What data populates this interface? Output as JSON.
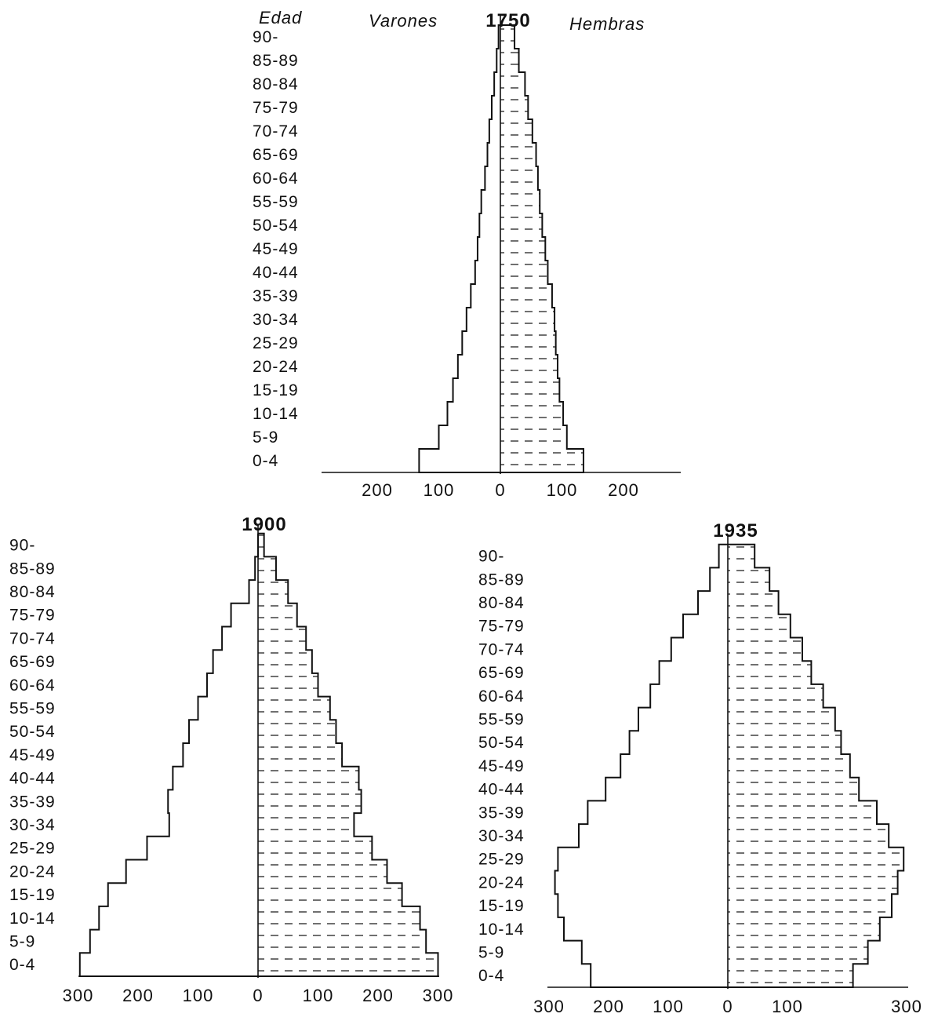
{
  "chart_data": [
    {
      "type": "bar",
      "title": "1750",
      "header_labels": {
        "age": "Edad",
        "male": "Varones",
        "female": "Hembras"
      },
      "categories": [
        "0-4",
        "5-9",
        "10-14",
        "15-19",
        "20-24",
        "25-29",
        "30-34",
        "35-39",
        "40-44",
        "45-49",
        "50-54",
        "55-59",
        "60-64",
        "65-69",
        "70-74",
        "75-79",
        "80-84",
        "85-89",
        "90-"
      ],
      "series": [
        {
          "name": "Varones",
          "values": [
            132,
            100,
            86,
            77,
            69,
            62,
            55,
            48,
            41,
            37,
            34,
            31,
            25,
            21,
            18,
            14,
            10,
            6,
            3
          ]
        },
        {
          "name": "Hembras",
          "values": [
            135,
            108,
            102,
            96,
            93,
            90,
            88,
            84,
            77,
            73,
            68,
            64,
            61,
            58,
            52,
            45,
            40,
            30,
            23
          ]
        }
      ],
      "xlim": [
        -300,
        300
      ],
      "xticks": [
        {
          "value": -200,
          "label": "200"
        },
        {
          "value": -100,
          "label": "100"
        },
        {
          "value": 0,
          "label": "0"
        },
        {
          "value": 100,
          "label": "100"
        },
        {
          "value": 200,
          "label": "200"
        }
      ]
    },
    {
      "type": "bar",
      "title": "1900",
      "categories": [
        "0-4",
        "5-9",
        "10-14",
        "15-19",
        "20-24",
        "25-29",
        "30-34",
        "35-39",
        "40-44",
        "45-49",
        "50-54",
        "55-59",
        "60-64",
        "65-69",
        "70-74",
        "75-79",
        "80-84",
        "85-89",
        "90-"
      ],
      "series": [
        {
          "name": "Varones",
          "values": [
            297,
            280,
            265,
            250,
            220,
            185,
            148,
            150,
            142,
            125,
            115,
            100,
            85,
            75,
            60,
            45,
            15,
            5,
            0
          ]
        },
        {
          "name": "Hembras",
          "values": [
            300,
            280,
            270,
            240,
            215,
            190,
            160,
            172,
            168,
            140,
            130,
            120,
            100,
            90,
            80,
            65,
            50,
            30,
            10
          ]
        }
      ],
      "xlim": [
        -300,
        300
      ],
      "xticks": [
        {
          "value": -300,
          "label": "300"
        },
        {
          "value": -200,
          "label": "200"
        },
        {
          "value": -100,
          "label": "100"
        },
        {
          "value": 0,
          "label": "0"
        },
        {
          "value": 100,
          "label": "100"
        },
        {
          "value": 200,
          "label": "200"
        },
        {
          "value": 300,
          "label": "300"
        }
      ]
    },
    {
      "type": "bar",
      "title": "1935",
      "categories": [
        "0-4",
        "5-9",
        "10-14",
        "15-19",
        "20-24",
        "25-29",
        "30-34",
        "35-39",
        "40-44",
        "45-49",
        "50-54",
        "55-59",
        "60-64",
        "65-69",
        "70-74",
        "75-79",
        "80-84",
        "85-89",
        "90-"
      ],
      "series": [
        {
          "name": "Varones",
          "values": [
            230,
            245,
            275,
            285,
            290,
            285,
            250,
            235,
            205,
            180,
            165,
            150,
            130,
            115,
            95,
            75,
            50,
            30,
            15
          ]
        },
        {
          "name": "Hembras",
          "values": [
            210,
            235,
            255,
            275,
            285,
            295,
            270,
            250,
            220,
            205,
            190,
            180,
            160,
            140,
            125,
            105,
            85,
            70,
            45
          ]
        }
      ],
      "xlim": [
        -300,
        300
      ],
      "xticks": [
        {
          "value": -300,
          "label": "300"
        },
        {
          "value": -200,
          "label": "200"
        },
        {
          "value": -100,
          "label": "100"
        },
        {
          "value": 0,
          "label": "0"
        },
        {
          "value": 100,
          "label": "100"
        },
        {
          "value": 300,
          "label": "300"
        }
      ]
    }
  ]
}
